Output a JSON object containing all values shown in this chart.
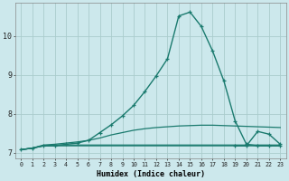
{
  "xlabel": "Humidex (Indice chaleur)",
  "background_color": "#cce8ec",
  "grid_color": "#aacccc",
  "line_color": "#1a7a6e",
  "xlim": [
    -0.5,
    23.5
  ],
  "ylim": [
    6.85,
    10.85
  ],
  "xticks": [
    0,
    1,
    2,
    3,
    4,
    5,
    6,
    7,
    8,
    9,
    10,
    11,
    12,
    13,
    14,
    15,
    16,
    17,
    18,
    19,
    20,
    21,
    22,
    23
  ],
  "yticks": [
    7,
    8,
    9,
    10
  ],
  "line1_x": [
    0,
    1,
    2,
    3,
    4,
    5,
    6,
    7,
    8,
    9,
    10,
    11,
    12,
    13,
    14,
    15,
    16,
    17,
    18,
    19,
    20,
    21,
    22,
    23
  ],
  "line1_y": [
    7.08,
    7.12,
    7.18,
    7.18,
    7.18,
    7.18,
    7.18,
    7.18,
    7.18,
    7.18,
    7.18,
    7.18,
    7.18,
    7.18,
    7.18,
    7.18,
    7.18,
    7.18,
    7.18,
    7.18,
    7.18,
    7.18,
    7.18,
    7.18
  ],
  "line2_x": [
    0,
    1,
    2,
    3,
    4,
    5,
    6,
    7,
    8,
    9,
    10,
    11,
    12,
    13,
    14,
    15,
    16,
    17,
    18,
    19,
    20,
    21,
    22,
    23
  ],
  "line2_y": [
    7.08,
    7.12,
    7.18,
    7.2,
    7.2,
    7.2,
    7.2,
    7.2,
    7.2,
    7.2,
    7.2,
    7.2,
    7.2,
    7.2,
    7.2,
    7.2,
    7.2,
    7.2,
    7.2,
    7.2,
    7.2,
    7.2,
    7.2,
    7.2
  ],
  "line3_x": [
    0,
    1,
    2,
    3,
    4,
    5,
    6,
    7,
    8,
    9,
    10,
    11,
    12,
    13,
    14,
    15,
    16,
    17,
    18,
    19,
    20,
    21,
    22,
    23
  ],
  "line3_y": [
    7.08,
    7.12,
    7.2,
    7.22,
    7.25,
    7.28,
    7.32,
    7.38,
    7.46,
    7.52,
    7.58,
    7.62,
    7.65,
    7.67,
    7.69,
    7.7,
    7.71,
    7.71,
    7.7,
    7.69,
    7.68,
    7.67,
    7.66,
    7.65
  ],
  "line4_x": [
    0,
    1,
    2,
    3,
    4,
    5,
    6,
    7,
    8,
    9,
    10,
    11,
    12,
    13,
    14,
    15,
    16,
    17,
    18,
    19,
    20,
    21,
    22,
    23
  ],
  "line4_y": [
    7.08,
    7.12,
    7.18,
    7.18,
    7.22,
    7.25,
    7.32,
    7.52,
    7.72,
    7.95,
    8.22,
    8.58,
    8.98,
    9.42,
    10.52,
    10.62,
    10.25,
    9.62,
    8.85,
    7.82,
    7.22,
    7.18,
    7.18,
    7.18
  ],
  "line5_x": [
    19,
    20,
    21,
    22,
    23
  ],
  "line5_y": [
    7.18,
    7.18,
    7.55,
    7.48,
    7.22
  ]
}
